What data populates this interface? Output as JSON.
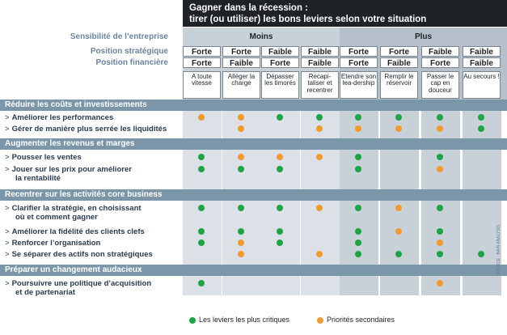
{
  "title": {
    "line1": "Gagner dans la récession :",
    "line2": "tirer (ou utiliser) les bons leviers selon votre situation"
  },
  "row_labels": {
    "sensibilite": "Sensibilité de l’entreprise",
    "strategique": "Position stratégique",
    "financiere": "Position financière"
  },
  "groups": [
    {
      "label": "Moins"
    },
    {
      "label": "Plus"
    }
  ],
  "columns": [
    {
      "strategique": "Forte",
      "financiere": "Forte",
      "strategy": "A toute vitesse"
    },
    {
      "strategique": "Forte",
      "financiere": "Faible",
      "strategy": "Alléger la charge"
    },
    {
      "strategique": "Faible",
      "financiere": "Forte",
      "strategy": "Dépasser les timorés"
    },
    {
      "strategique": "Faible",
      "financiere": "Faible",
      "strategy": "Recapi-taliser et recentrer"
    },
    {
      "strategique": "Forte",
      "financiere": "Forte",
      "strategy": "Etendre son lea-dership"
    },
    {
      "strategique": "Forte",
      "financiere": "Faible",
      "strategy": "Remplir le réservoir"
    },
    {
      "strategique": "Faible",
      "financiere": "Forte",
      "strategy": "Passer le cap en douceur"
    },
    {
      "strategique": "Faible",
      "financiere": "Faible",
      "strategy": "Au secours !"
    }
  ],
  "sections": [
    {
      "label": "Réduire les coûts et investissements",
      "items": [
        {
          "line1": "Améliorer les performances",
          "line2": "",
          "dots": [
            "o",
            "o",
            "g",
            "g",
            "g",
            "g",
            "g",
            "g"
          ]
        },
        {
          "line1": "Gérer de manière plus serrée les liquidités",
          "line2": "",
          "dots": [
            "",
            "o",
            "",
            "o",
            "o",
            "o",
            "o",
            "g"
          ]
        }
      ]
    },
    {
      "label": "Augmenter les revenus et marges",
      "items": [
        {
          "line1": "Pousser les ventes",
          "line2": "",
          "dots": [
            "g",
            "o",
            "o",
            "o",
            "g",
            "",
            "g",
            ""
          ]
        },
        {
          "line1": "Jouer sur les prix pour améliorer",
          "line2": "la rentabilité",
          "dots": [
            "g",
            "g",
            "g",
            "",
            "g",
            "",
            "o",
            ""
          ]
        }
      ]
    },
    {
      "label": "Recentrer sur les activités  core  business",
      "items": [
        {
          "line1": "Clarifier la stratégie, en choisissant",
          "line2": "où et comment gagner",
          "dots": [
            "g",
            "g",
            "g",
            "o",
            "g",
            "o",
            "g",
            ""
          ]
        },
        {
          "line1": "Améliorer la fidélité des clients clefs",
          "line2": "",
          "dots": [
            "g",
            "g",
            "g",
            "",
            "g",
            "o",
            "g",
            ""
          ]
        },
        {
          "line1": "Renforcer l’organisation",
          "line2": "",
          "dots": [
            "g",
            "o",
            "g",
            "",
            "g",
            "",
            "o",
            ""
          ]
        },
        {
          "line1": "Se séparer des actifs non stratégiques",
          "line2": "",
          "dots": [
            "",
            "o",
            "",
            "o",
            "g",
            "g",
            "g",
            "g"
          ]
        }
      ]
    },
    {
      "label": "Préparer un changement audacieux",
      "items": [
        {
          "line1": "Poursuivre une politique d’acquisition",
          "line2": "et de partenariat",
          "dots": [
            "g",
            "",
            "",
            "",
            "",
            "",
            "o",
            ""
          ]
        }
      ]
    }
  ],
  "legend": {
    "green_label": "Les leviers les plus critiques",
    "orange_label": "Priorités secondaires"
  },
  "source_note": "SOURCE : BAIN ANALYSIS",
  "colors": {
    "green": "#1fa347",
    "orange": "#f39a2e",
    "band": "#7b96a8",
    "panel_light": "#dbe1e6",
    "panel_dark": "#c9d1d8"
  }
}
